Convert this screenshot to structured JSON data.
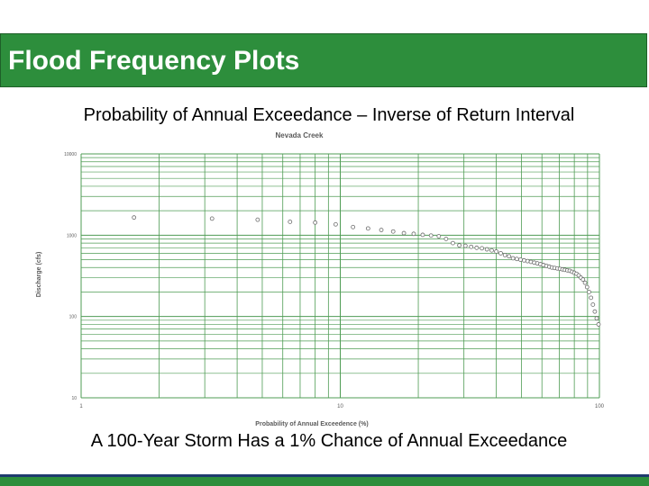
{
  "slide": {
    "title": "Flood Frequency Plots",
    "subtitle": "Probability of Annual Exceedance – Inverse of Return Interval",
    "caption": "A 100-Year Storm Has a 1% Chance of Annual Exceedance"
  },
  "colors": {
    "accent": "#2d8e3c",
    "grid": "#4f9c54",
    "point": "#6b6b6b"
  },
  "chart_data": {
    "type": "scatter",
    "title": "Nevada Creek",
    "xlabel": "Probability of Annual Exceedence (%)",
    "ylabel": "Discharge (cfs)",
    "x_scale": "log",
    "y_scale": "log",
    "xlim": [
      1,
      100
    ],
    "ylim": [
      10,
      10000
    ],
    "x_ticks": [
      1,
      10,
      100
    ],
    "x_tick_labels": [
      "1",
      "10",
      "100"
    ],
    "y_ticks": [
      10,
      100,
      1000,
      10000
    ],
    "y_tick_labels": [
      "10",
      "100",
      "1000",
      "10000"
    ],
    "grid": true,
    "series": [
      {
        "x": [
          1.6,
          3.2,
          4.8,
          6.4,
          8.0,
          9.6,
          11.2,
          12.8,
          14.4,
          16.0,
          17.6,
          19.2,
          20.8,
          22.4,
          24.0,
          25.6,
          27.2,
          28.8,
          30.4,
          32.0,
          33.6,
          35.2,
          36.8,
          38.4,
          40.0,
          41.6,
          43.2,
          44.8,
          46.4,
          48.0,
          49.6,
          51.2,
          52.8,
          54.4,
          56.0,
          57.6,
          59.2,
          60.8,
          62.4,
          64.0,
          65.6,
          67.2,
          68.8,
          70.4,
          72.0,
          73.6,
          75.2,
          76.8,
          78.4,
          80.0,
          81.6,
          83.2,
          84.8,
          86.4,
          88.0,
          89.6,
          91.2,
          92.8,
          94.4,
          96.0,
          97.6,
          99.2
        ],
        "y": [
          1650,
          1600,
          1550,
          1460,
          1430,
          1360,
          1260,
          1210,
          1160,
          1110,
          1060,
          1040,
          1010,
          990,
          970,
          900,
          800,
          750,
          740,
          720,
          700,
          690,
          670,
          650,
          630,
          600,
          570,
          550,
          520,
          510,
          500,
          490,
          480,
          470,
          460,
          450,
          440,
          430,
          420,
          410,
          400,
          395,
          390,
          385,
          380,
          375,
          370,
          365,
          355,
          345,
          335,
          320,
          300,
          285,
          260,
          230,
          200,
          170,
          140,
          115,
          95,
          80
        ]
      }
    ]
  }
}
